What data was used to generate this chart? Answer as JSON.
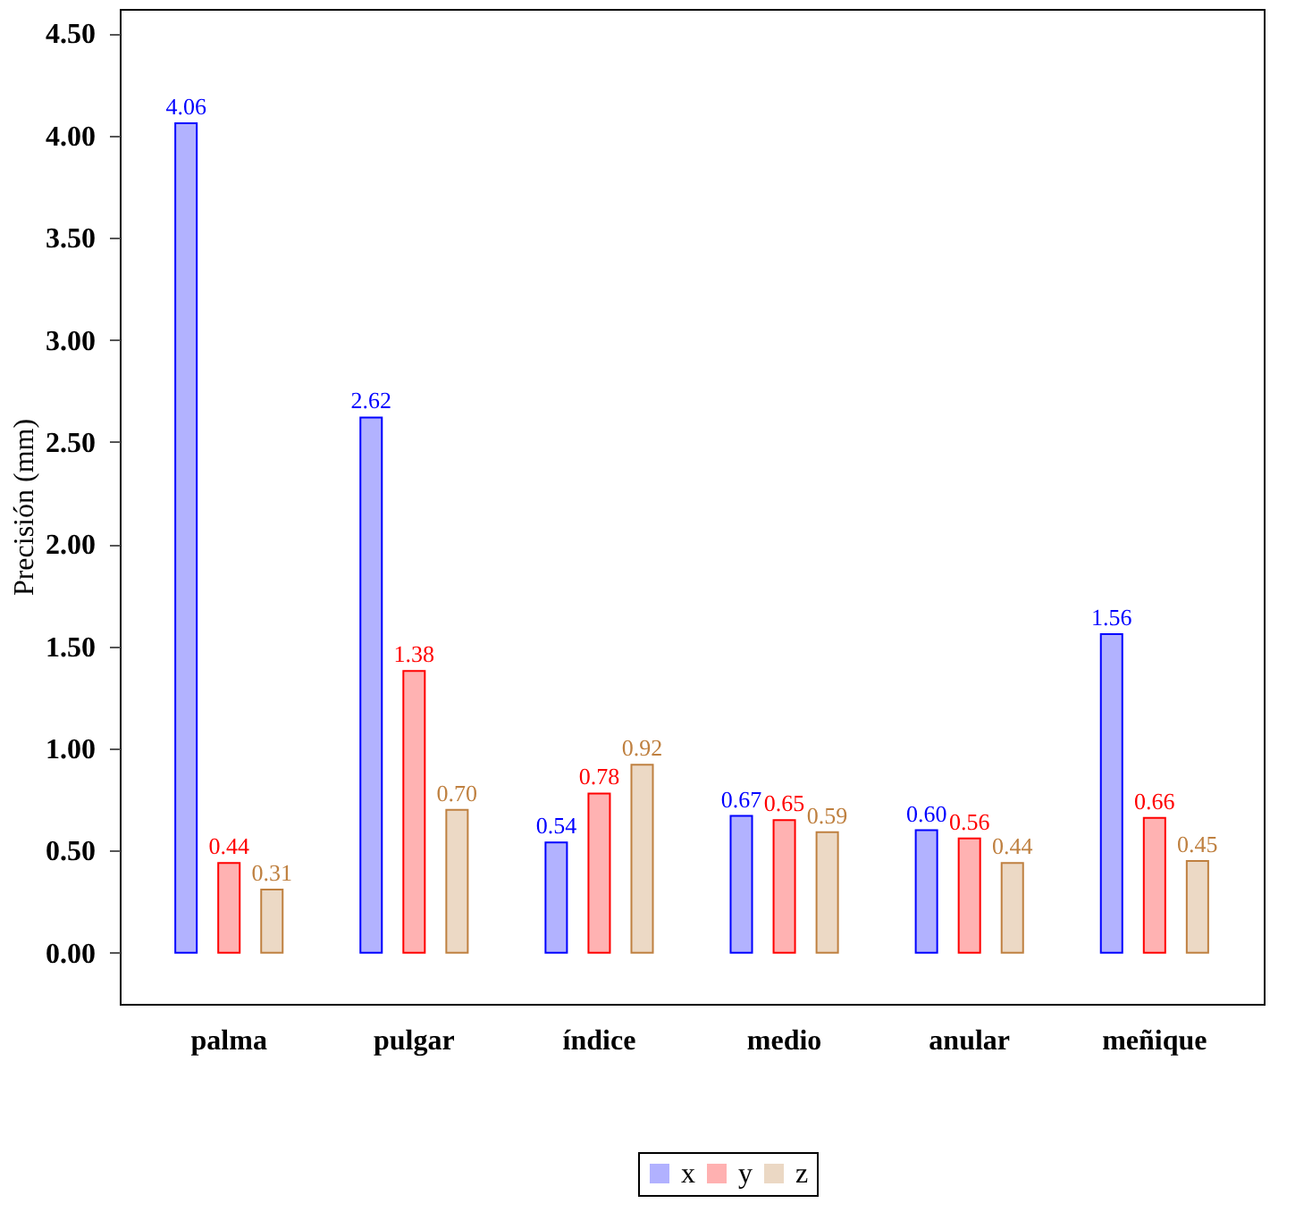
{
  "chart_data": {
    "type": "bar",
    "ylabel": "Precisión (mm)",
    "categories": [
      "palma",
      "pulgar",
      "índice",
      "medio",
      "anular",
      "meñique"
    ],
    "series": [
      {
        "name": "x",
        "color": "#0000ff",
        "values": [
          4.06,
          2.62,
          0.54,
          0.67,
          0.6,
          1.56
        ],
        "value_labels": [
          "4.06",
          "2.62",
          "0.54",
          "0.67",
          "0.60",
          "1.56"
        ]
      },
      {
        "name": "y",
        "color": "#ff0000",
        "values": [
          0.44,
          1.38,
          0.78,
          0.65,
          0.56,
          0.66
        ],
        "value_labels": [
          "0.44",
          "1.38",
          "0.78",
          "0.65",
          "0.56",
          "0.66"
        ]
      },
      {
        "name": "z",
        "color": "#bf8040",
        "values": [
          0.31,
          0.7,
          0.92,
          0.59,
          0.44,
          0.45
        ],
        "value_labels": [
          "0.31",
          "0.70",
          "0.92",
          "0.59",
          "0.44",
          "0.45"
        ]
      }
    ],
    "ylim": [
      -0.25,
      4.62
    ],
    "yticks": [
      {
        "value": 0,
        "label": "0.00"
      },
      {
        "value": 0.5,
        "label": "0.50"
      },
      {
        "value": 1,
        "label": "1.00"
      },
      {
        "value": 1.5,
        "label": "1.50"
      },
      {
        "value": 2,
        "label": "2.00"
      },
      {
        "value": 2.5,
        "label": "2.50"
      },
      {
        "value": 3,
        "label": "3.00"
      },
      {
        "value": 3.5,
        "label": "3.50"
      },
      {
        "value": 4,
        "label": "4.00"
      },
      {
        "value": 4.5,
        "label": "4.50"
      }
    ],
    "grid": false,
    "legend": "bottom"
  }
}
